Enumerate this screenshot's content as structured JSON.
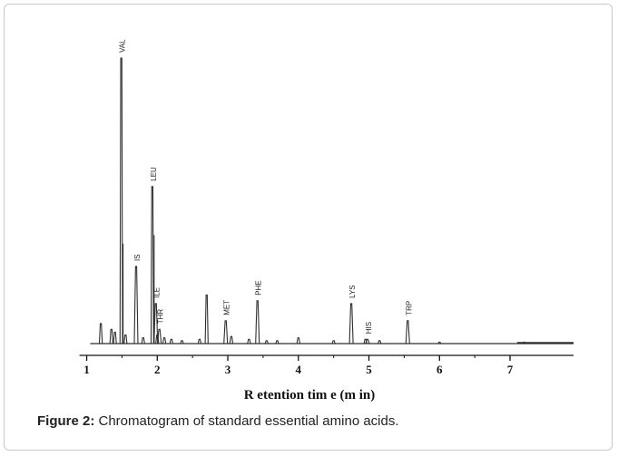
{
  "chart_data": {
    "type": "line",
    "title": "",
    "xlabel": "R etention  tim e  (m in)",
    "ylabel": "",
    "xlim": [
      0.8,
      7.9
    ],
    "x_ticks": [
      1,
      2,
      3,
      4,
      5,
      6,
      7
    ],
    "tick_labels": [
      "1",
      "2",
      "3",
      "4",
      "5",
      "6",
      "7"
    ],
    "colors": {
      "trace": "#2f2f2f",
      "axis": "#111111"
    },
    "baseline_noise": [
      {
        "x": 1.2,
        "h": 0.07
      },
      {
        "x": 1.35,
        "h": 0.05
      },
      {
        "x": 1.4,
        "h": 0.04
      },
      {
        "x": 1.55,
        "h": 0.03
      },
      {
        "x": 1.8,
        "h": 0.02
      },
      {
        "x": 2.0,
        "h": 0.03
      },
      {
        "x": 2.1,
        "h": 0.02
      },
      {
        "x": 2.2,
        "h": 0.015
      },
      {
        "x": 2.35,
        "h": 0.01
      },
      {
        "x": 2.6,
        "h": 0.015
      },
      {
        "x": 2.7,
        "h": 0.17
      },
      {
        "x": 3.05,
        "h": 0.025
      },
      {
        "x": 3.3,
        "h": 0.015
      },
      {
        "x": 3.55,
        "h": 0.01
      },
      {
        "x": 3.7,
        "h": 0.01
      },
      {
        "x": 4.0,
        "h": 0.02
      },
      {
        "x": 4.5,
        "h": 0.01
      },
      {
        "x": 4.95,
        "h": 0.015
      },
      {
        "x": 5.15,
        "h": 0.01
      },
      {
        "x": 6.0,
        "h": 0.005
      },
      {
        "x": 7.2,
        "h": 0.005
      }
    ],
    "peaks": [
      {
        "label": "VAL",
        "x": 1.49,
        "h": 1.0
      },
      {
        "label": "IS",
        "x": 1.7,
        "h": 0.27
      },
      {
        "label": "LEU",
        "x": 1.93,
        "h": 0.55
      },
      {
        "label": "THR",
        "x": 2.03,
        "h": 0.05
      },
      {
        "label": "ILE",
        "x": 1.98,
        "h": 0.14
      },
      {
        "label": "MET",
        "x": 2.97,
        "h": 0.08
      },
      {
        "label": "PHE",
        "x": 3.42,
        "h": 0.15
      },
      {
        "label": "LYS",
        "x": 4.75,
        "h": 0.14
      },
      {
        "label": "HIS",
        "x": 4.98,
        "h": 0.015
      },
      {
        "label": "TRP",
        "x": 5.55,
        "h": 0.08
      }
    ]
  },
  "caption": {
    "label": "Figure 2:",
    "text": " Chromatogram of standard essential amino acids."
  }
}
